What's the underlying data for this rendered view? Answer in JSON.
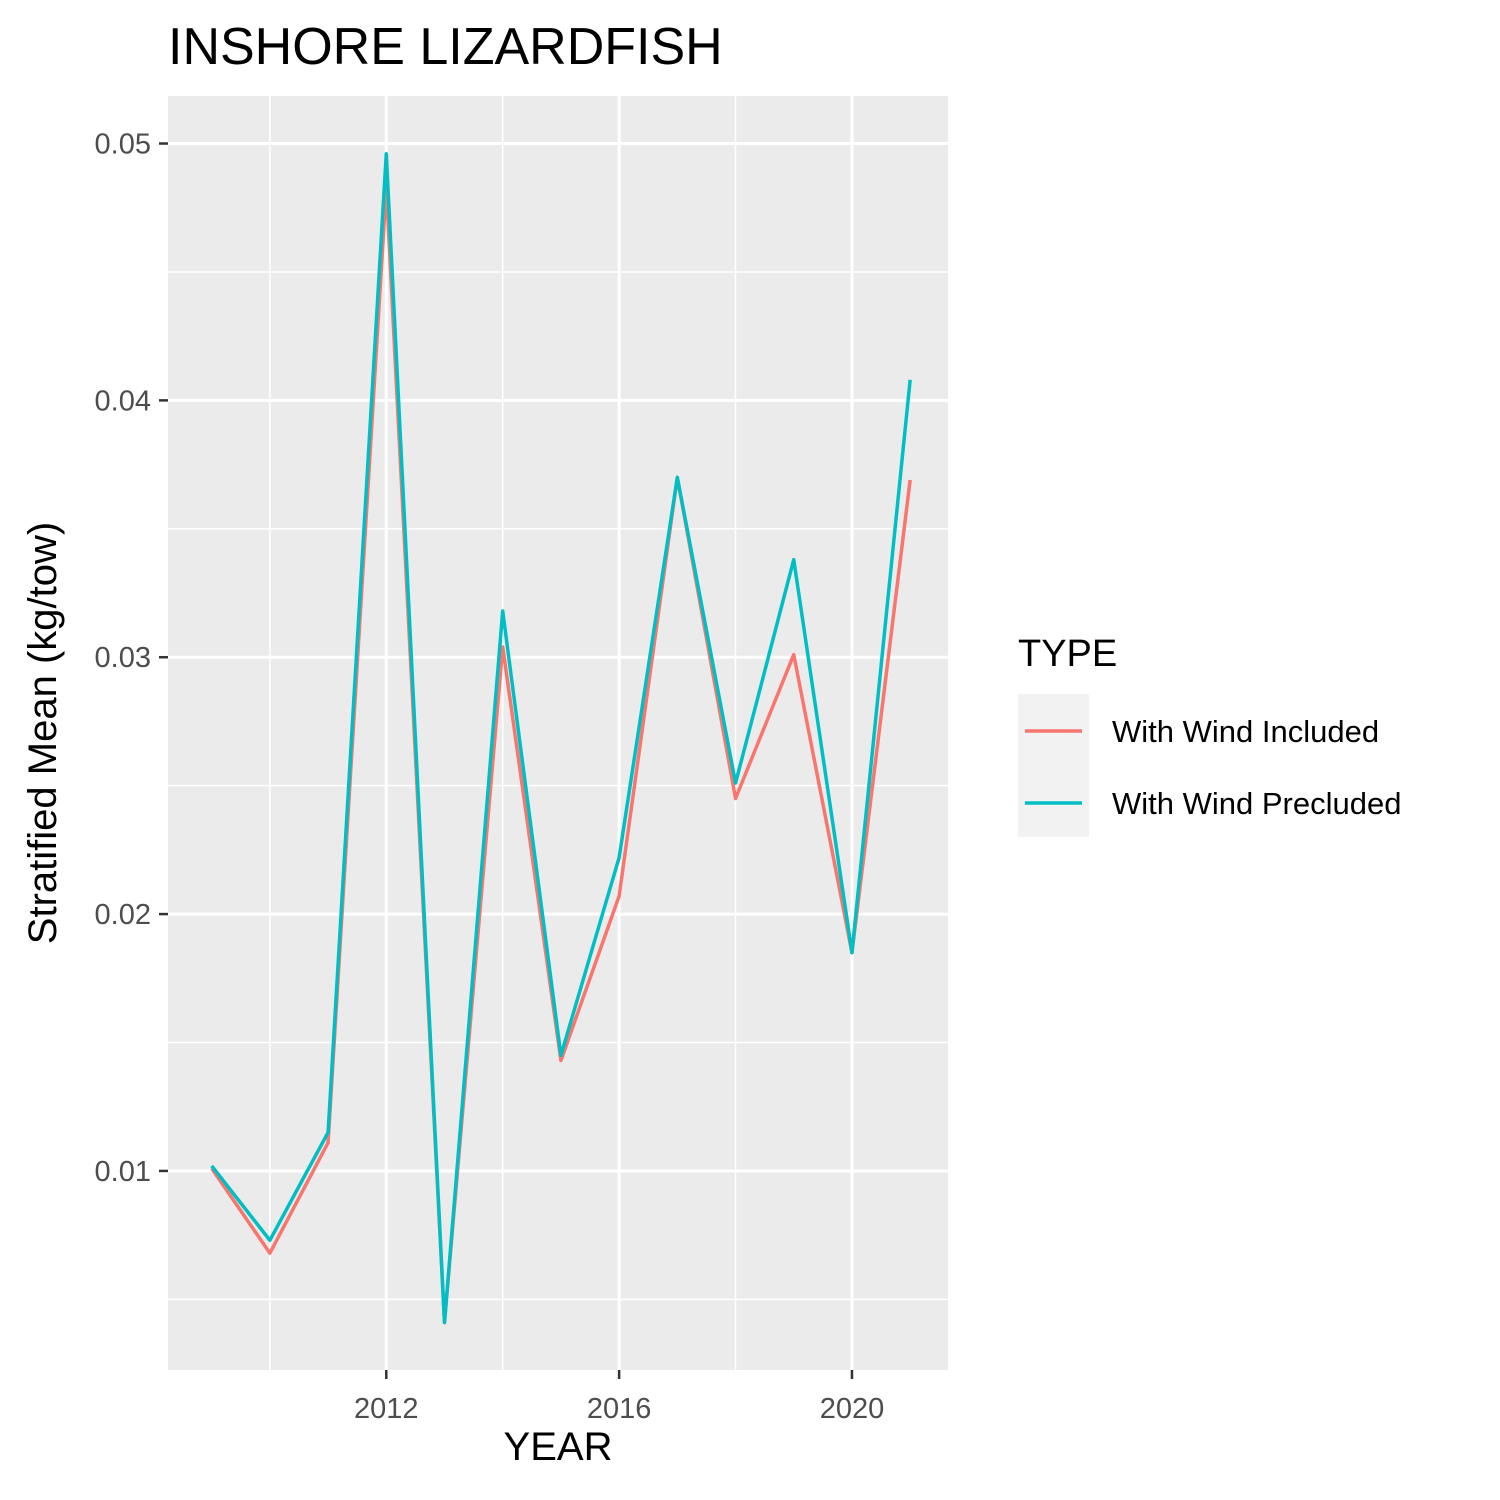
{
  "chart_data": {
    "type": "line",
    "title": "INSHORE LIZARDFISH",
    "xlabel": "YEAR",
    "ylabel": "Stratified Mean (kg/tow)",
    "x": [
      2009,
      2010,
      2011,
      2012,
      2013,
      2014,
      2015,
      2016,
      2017,
      2018,
      2019,
      2020,
      2021
    ],
    "series": [
      {
        "name": "With Wind Included",
        "color": "#F8766D",
        "values": [
          0.0101,
          0.0068,
          0.0111,
          0.0483,
          0.0041,
          0.0304,
          0.0143,
          0.0207,
          0.037,
          0.0245,
          0.0301,
          0.0185,
          0.0369
        ]
      },
      {
        "name": "With Wind Precluded",
        "color": "#00BFC4",
        "values": [
          0.0102,
          0.0073,
          0.0115,
          0.0496,
          0.0041,
          0.0318,
          0.0145,
          0.0222,
          0.037,
          0.0251,
          0.0338,
          0.0185,
          0.0408
        ]
      }
    ],
    "xlim": [
      2008.25,
      2021.65
    ],
    "ylim": [
      0.00225,
      0.05185
    ],
    "x_ticks": [
      2012,
      2016,
      2020
    ],
    "x_tick_labels": [
      "2012",
      "2016",
      "2020"
    ],
    "x_minor_ticks": [
      2010,
      2014,
      2018
    ],
    "y_ticks": [
      0.01,
      0.02,
      0.03,
      0.04,
      0.05
    ],
    "y_tick_labels": [
      "0.01",
      "0.02",
      "0.03",
      "0.04",
      "0.05"
    ],
    "y_minor_ticks": [
      0.005,
      0.015,
      0.025,
      0.035,
      0.045
    ],
    "grid": true,
    "legend": {
      "title": "TYPE",
      "position": "right"
    }
  }
}
